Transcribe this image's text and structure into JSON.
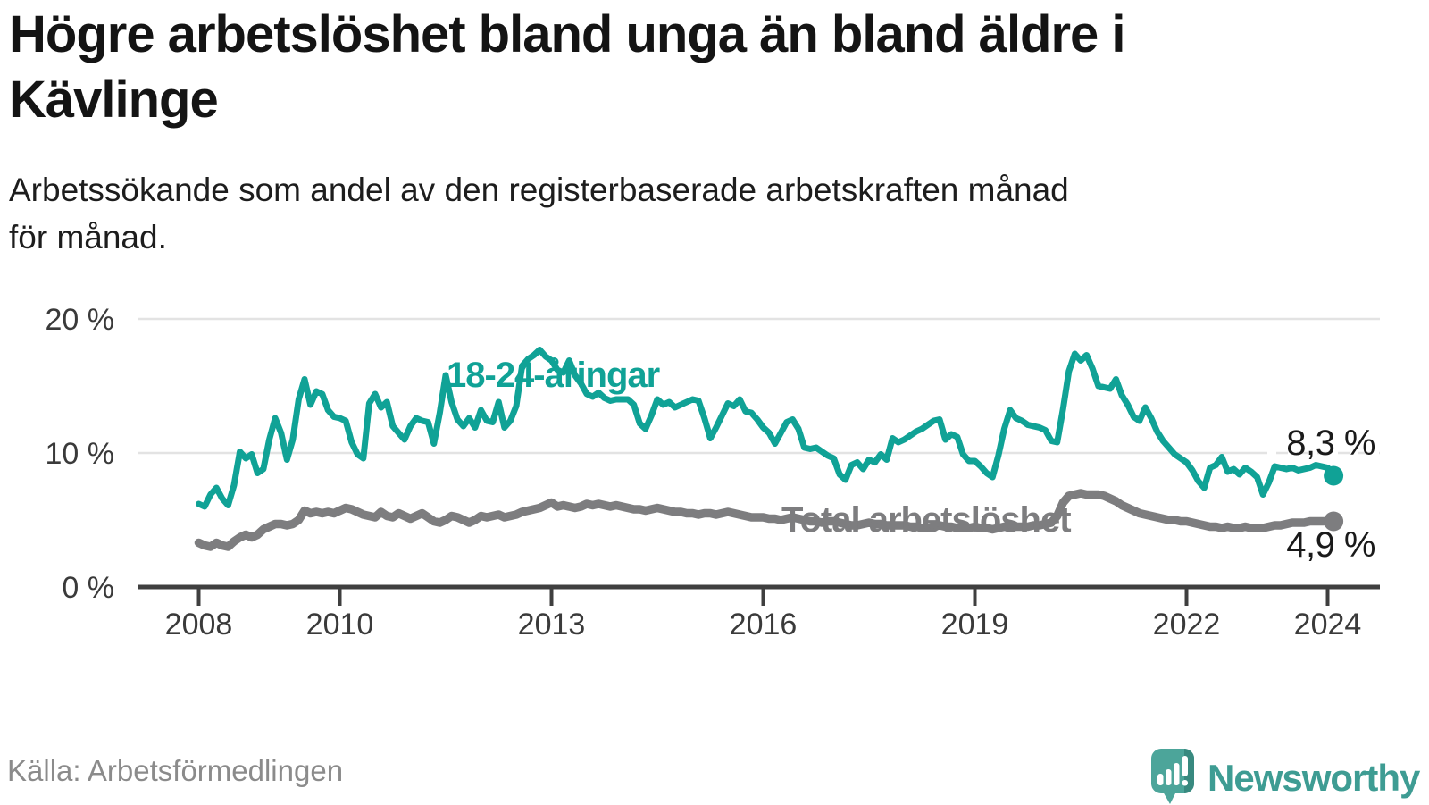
{
  "header": {
    "title_lines": [
      "Högre arbetslöshet bland unga än bland äldre i",
      "Kävlinge"
    ],
    "subtitle_lines": [
      "Arbetssökande som andel av den registerbaserade arbetskraften månad",
      "för månad."
    ]
  },
  "chart": {
    "y_tick_labels": [
      "20 %",
      "10 %",
      "0 %"
    ],
    "y_tick_values": [
      20,
      10,
      0
    ],
    "x_tick_years": [
      2008,
      2010,
      2013,
      2016,
      2019,
      2022,
      2024
    ],
    "series_labels": {
      "youth": "18-24-åringar",
      "total": "Total arbetslöshet"
    },
    "end_labels": {
      "youth": "8,3 %",
      "total": "4,9 %"
    },
    "colors": {
      "youth": "#10a296",
      "total": "#7d7d7f",
      "grid": "#e3e3e3",
      "axis": "#3f3f3f",
      "tick_text": "#3a3a3a"
    }
  },
  "chart_data": {
    "type": "line",
    "title": "Högre arbetslöshet bland unga än bland äldre i Kävlinge",
    "subtitle": "Arbetssökande som andel av den registerbaserade arbetskraften månad för månad.",
    "unit": "%",
    "frequency": "monthly",
    "x_start": "2008-01",
    "x_end": "2024-02",
    "ylim": [
      0,
      21
    ],
    "y_gridlines": [
      10,
      20
    ],
    "x_tick_years": [
      2008,
      2010,
      2013,
      2016,
      2019,
      2022,
      2024
    ],
    "legend_position": "inline-labels",
    "series": [
      {
        "name": "Total arbetslöshet",
        "color": "#7d7d7f",
        "last_value_label": "4,9 %",
        "values": [
          3.3,
          3.1,
          3.0,
          3.3,
          3.1,
          3.0,
          3.4,
          3.7,
          3.9,
          3.7,
          3.9,
          4.3,
          4.5,
          4.7,
          4.7,
          4.6,
          4.7,
          5.0,
          5.7,
          5.5,
          5.6,
          5.5,
          5.6,
          5.5,
          5.7,
          5.9,
          5.8,
          5.6,
          5.4,
          5.3,
          5.2,
          5.6,
          5.3,
          5.2,
          5.5,
          5.3,
          5.1,
          5.3,
          5.5,
          5.2,
          4.9,
          4.8,
          5.0,
          5.3,
          5.2,
          5.0,
          4.8,
          5.0,
          5.3,
          5.2,
          5.3,
          5.4,
          5.2,
          5.3,
          5.4,
          5.6,
          5.7,
          5.8,
          5.9,
          6.1,
          6.3,
          6.0,
          6.1,
          6.0,
          5.9,
          6.0,
          6.2,
          6.1,
          6.2,
          6.1,
          6.0,
          6.1,
          6.0,
          5.9,
          5.8,
          5.8,
          5.7,
          5.8,
          5.9,
          5.8,
          5.7,
          5.6,
          5.6,
          5.5,
          5.5,
          5.4,
          5.5,
          5.5,
          5.4,
          5.5,
          5.6,
          5.5,
          5.4,
          5.3,
          5.2,
          5.2,
          5.2,
          5.1,
          5.1,
          5.0,
          5.1,
          5.2,
          5.1,
          5.0,
          4.9,
          4.9,
          4.8,
          4.9,
          4.9,
          4.8,
          4.7,
          4.6,
          4.6,
          4.7,
          4.8,
          4.7,
          4.7,
          4.6,
          4.6,
          4.6,
          4.6,
          4.5,
          4.5,
          4.4,
          4.4,
          4.5,
          4.6,
          4.5,
          4.5,
          4.4,
          4.4,
          4.4,
          4.5,
          4.4,
          4.4,
          4.3,
          4.4,
          4.5,
          4.6,
          4.5,
          4.5,
          4.5,
          4.6,
          4.6,
          4.7,
          4.8,
          5.3,
          6.3,
          6.8,
          6.9,
          7.0,
          6.9,
          6.9,
          6.9,
          6.8,
          6.6,
          6.4,
          6.1,
          5.9,
          5.7,
          5.5,
          5.4,
          5.3,
          5.2,
          5.1,
          5.0,
          5.0,
          4.9,
          4.9,
          4.8,
          4.7,
          4.6,
          4.5,
          4.5,
          4.4,
          4.5,
          4.4,
          4.4,
          4.5,
          4.4,
          4.4,
          4.4,
          4.5,
          4.6,
          4.6,
          4.7,
          4.8,
          4.8,
          4.8,
          4.9,
          4.9,
          4.9,
          4.9,
          4.9
        ]
      },
      {
        "name": "18-24-åringar",
        "color": "#10a296",
        "last_value_label": "8,3 %",
        "values": [
          6.2,
          6.0,
          6.9,
          7.4,
          6.6,
          6.1,
          7.6,
          10.1,
          9.6,
          9.9,
          8.5,
          8.8,
          11.0,
          12.6,
          11.5,
          9.5,
          11.0,
          14.0,
          15.5,
          13.6,
          14.6,
          14.4,
          13.2,
          12.7,
          12.6,
          12.4,
          10.8,
          9.9,
          9.6,
          13.7,
          14.4,
          13.4,
          13.8,
          12.0,
          11.5,
          11.0,
          12.0,
          12.6,
          12.4,
          12.3,
          10.7,
          13.0,
          15.8,
          13.8,
          12.5,
          12.0,
          12.6,
          11.9,
          13.2,
          12.4,
          12.3,
          13.8,
          11.9,
          12.4,
          13.5,
          16.5,
          17.0,
          17.3,
          17.7,
          17.2,
          16.9,
          16.2,
          16.0,
          16.9,
          15.8,
          15.2,
          14.4,
          14.2,
          14.5,
          14.1,
          13.9,
          14.0,
          14.0,
          14.0,
          13.6,
          12.2,
          11.8,
          12.8,
          14.0,
          13.6,
          13.8,
          13.4,
          13.6,
          13.8,
          14.0,
          13.9,
          12.6,
          11.1,
          11.9,
          12.8,
          13.7,
          13.5,
          14.0,
          13.1,
          13.0,
          12.5,
          11.9,
          11.5,
          10.7,
          11.5,
          12.3,
          12.5,
          11.8,
          10.4,
          10.3,
          10.4,
          10.1,
          9.8,
          9.6,
          8.4,
          8.0,
          9.1,
          9.3,
          8.8,
          9.5,
          9.3,
          9.9,
          9.5,
          11.1,
          10.8,
          11.0,
          11.3,
          11.6,
          11.8,
          12.1,
          12.4,
          12.5,
          11.0,
          11.4,
          11.2,
          9.9,
          9.4,
          9.4,
          9.0,
          8.5,
          8.2,
          9.8,
          11.8,
          13.2,
          12.6,
          12.4,
          12.1,
          12.0,
          11.9,
          11.7,
          10.9,
          10.8,
          13.3,
          16.1,
          17.4,
          16.9,
          17.3,
          16.3,
          15.0,
          14.9,
          14.8,
          15.5,
          14.3,
          13.6,
          12.7,
          12.4,
          13.4,
          12.6,
          11.6,
          10.9,
          10.4,
          9.9,
          9.6,
          9.3,
          8.7,
          7.9,
          7.4,
          8.9,
          9.1,
          9.7,
          8.6,
          8.8,
          8.4,
          8.9,
          8.6,
          8.2,
          6.9,
          7.8,
          9.0,
          8.9,
          8.8,
          8.9,
          8.7,
          8.8,
          8.9,
          9.1,
          9.0,
          8.9,
          8.3
        ]
      }
    ]
  },
  "footer": {
    "source": "Källa: Arbetsförmedlingen",
    "brand": "Newsworthy"
  }
}
